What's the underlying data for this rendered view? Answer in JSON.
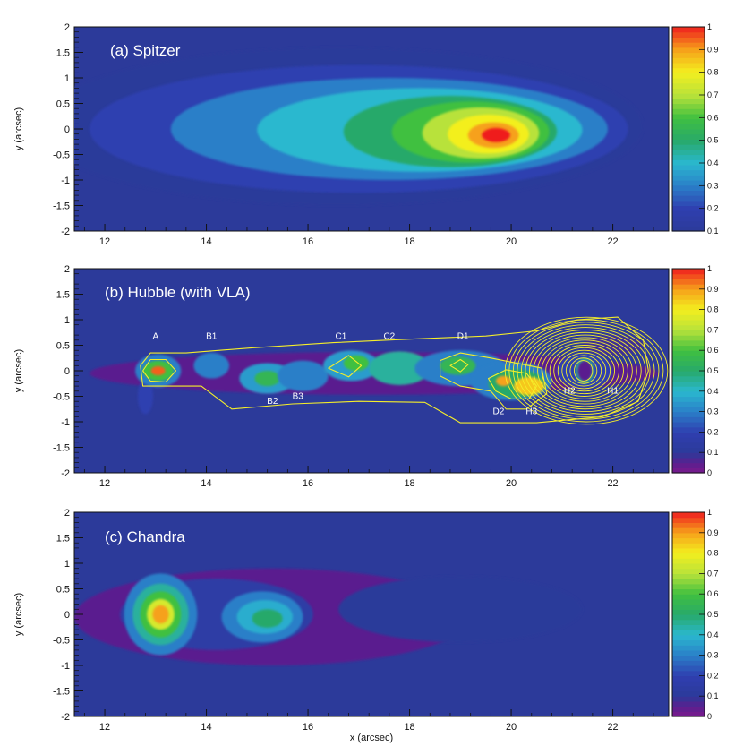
{
  "chart_data": [
    {
      "type": "heatmap",
      "title": "(a) Spitzer",
      "xlabel": "",
      "ylabel": "y (arcsec)",
      "xlim": [
        11.4,
        23.1
      ],
      "ylim": [
        -2,
        2
      ],
      "x_ticks": [
        "12",
        "14",
        "16",
        "18",
        "20",
        "22"
      ],
      "y_ticks": [
        "2",
        "1.5",
        "1",
        "0.5",
        "0",
        "-0.5",
        "-1",
        "-1.5",
        "-2"
      ],
      "colorbar": {
        "range": [
          0.1,
          1
        ],
        "labels": [
          "1",
          "0.9",
          "0.8",
          "0.7",
          "0.6",
          "0.5",
          "0.4",
          "0.3",
          "0.2",
          "0.1"
        ]
      },
      "background": "#2c3a9a",
      "sources": [
        {
          "x": 16.6,
          "y": 0.05,
          "rx": 6.0,
          "ry": 1.55,
          "level": 0.1
        },
        {
          "x": 17.0,
          "y": 0.0,
          "rx": 5.3,
          "ry": 1.25,
          "level": 0.2
        },
        {
          "x": 17.6,
          "y": 0.0,
          "rx": 4.3,
          "ry": 1.0,
          "level": 0.3
        },
        {
          "x": 18.2,
          "y": -0.02,
          "rx": 3.2,
          "ry": 0.82,
          "level": 0.4
        },
        {
          "x": 18.8,
          "y": -0.05,
          "rx": 2.1,
          "ry": 0.7,
          "level": 0.5
        },
        {
          "x": 19.2,
          "y": -0.06,
          "rx": 1.55,
          "ry": 0.6,
          "level": 0.6
        },
        {
          "x": 19.4,
          "y": -0.08,
          "rx": 1.15,
          "ry": 0.5,
          "level": 0.7
        },
        {
          "x": 19.55,
          "y": -0.1,
          "rx": 0.8,
          "ry": 0.38,
          "level": 0.8
        },
        {
          "x": 19.65,
          "y": -0.12,
          "rx": 0.5,
          "ry": 0.25,
          "level": 0.9
        },
        {
          "x": 19.7,
          "y": -0.12,
          "rx": 0.28,
          "ry": 0.14,
          "level": 1.0
        }
      ],
      "contours": [],
      "annotations": []
    },
    {
      "type": "heatmap",
      "title": "(b) Hubble (with VLA)",
      "xlabel": "",
      "ylabel": "y (arcsec)",
      "xlim": [
        11.4,
        23.1
      ],
      "ylim": [
        -2,
        2
      ],
      "x_ticks": [
        "12",
        "14",
        "16",
        "18",
        "20",
        "22"
      ],
      "y_ticks": [
        "2",
        "1.5",
        "1",
        "0.5",
        "0",
        "-0.5",
        "-1",
        "-1.5",
        "-2"
      ],
      "colorbar": {
        "range": [
          0,
          1
        ],
        "labels": [
          "1",
          "0.9",
          "0.8",
          "0.7",
          "0.6",
          "0.5",
          "0.4",
          "0.3",
          "0.2",
          "0.1",
          "0"
        ]
      },
      "background": "#2c3a9a",
      "sources": [
        {
          "x": 17.3,
          "y": -0.05,
          "rx": 5.6,
          "ry": 0.42,
          "level": 0.05
        },
        {
          "x": 12.8,
          "y": -0.5,
          "rx": 0.15,
          "ry": 0.35,
          "level": 0.2
        },
        {
          "x": 13.05,
          "y": 0.0,
          "rx": 0.45,
          "ry": 0.32,
          "level": 0.3
        },
        {
          "x": 13.05,
          "y": 0.0,
          "rx": 0.3,
          "ry": 0.2,
          "level": 0.6
        },
        {
          "x": 13.05,
          "y": 0.0,
          "rx": 0.14,
          "ry": 0.09,
          "level": 0.95
        },
        {
          "x": 14.1,
          "y": 0.1,
          "rx": 0.35,
          "ry": 0.25,
          "level": 0.3
        },
        {
          "x": 15.2,
          "y": -0.15,
          "rx": 0.55,
          "ry": 0.3,
          "level": 0.35
        },
        {
          "x": 15.2,
          "y": -0.15,
          "rx": 0.25,
          "ry": 0.15,
          "level": 0.55
        },
        {
          "x": 15.9,
          "y": -0.1,
          "rx": 0.5,
          "ry": 0.3,
          "level": 0.3
        },
        {
          "x": 16.85,
          "y": 0.1,
          "rx": 0.55,
          "ry": 0.3,
          "level": 0.35
        },
        {
          "x": 16.95,
          "y": 0.15,
          "rx": 0.25,
          "ry": 0.15,
          "level": 0.6
        },
        {
          "x": 17.8,
          "y": 0.05,
          "rx": 0.6,
          "ry": 0.33,
          "level": 0.45
        },
        {
          "x": 19.0,
          "y": 0.05,
          "rx": 0.9,
          "ry": 0.35,
          "level": 0.3
        },
        {
          "x": 18.95,
          "y": 0.1,
          "rx": 0.35,
          "ry": 0.18,
          "level": 0.55
        },
        {
          "x": 20.0,
          "y": -0.2,
          "rx": 0.8,
          "ry": 0.38,
          "level": 0.3
        },
        {
          "x": 20.1,
          "y": -0.25,
          "rx": 0.55,
          "ry": 0.28,
          "level": 0.5
        },
        {
          "x": 20.35,
          "y": -0.3,
          "rx": 0.3,
          "ry": 0.18,
          "level": 0.85
        },
        {
          "x": 19.85,
          "y": -0.2,
          "rx": 0.15,
          "ry": 0.1,
          "level": 0.9
        },
        {
          "x": 21.45,
          "y": 0.0,
          "rx": 0.55,
          "ry": 0.35,
          "level": 0.2
        },
        {
          "x": 21.45,
          "y": 0.0,
          "rx": 0.18,
          "ry": 0.25,
          "level": 0.45
        },
        {
          "x": 21.45,
          "y": 0.0,
          "rx": 0.14,
          "ry": 0.2,
          "level": 0.05
        },
        {
          "x": 22.0,
          "y": 0.5,
          "rx": 0.6,
          "ry": 0.2,
          "level": 0.08
        }
      ],
      "contours": [
        {
          "points": [
            [
              12.7,
              0.1
            ],
            [
              12.9,
              0.35
            ],
            [
              13.6,
              0.35
            ],
            [
              14.9,
              0.45
            ],
            [
              16.5,
              0.55
            ],
            [
              18.0,
              0.62
            ],
            [
              19.5,
              0.68
            ],
            [
              20.5,
              0.78
            ],
            [
              21.3,
              1.0
            ],
            [
              22.1,
              1.05
            ],
            [
              22.6,
              0.6
            ],
            [
              22.7,
              0.0
            ],
            [
              22.5,
              -0.6
            ],
            [
              21.8,
              -0.9
            ],
            [
              20.5,
              -1.02
            ],
            [
              19.0,
              -1.02
            ],
            [
              18.3,
              -0.62
            ],
            [
              17.0,
              -0.6
            ],
            [
              15.7,
              -0.65
            ],
            [
              14.5,
              -0.75
            ],
            [
              13.9,
              -0.3
            ],
            [
              13.3,
              -0.3
            ],
            [
              12.75,
              -0.3
            ]
          ],
          "closed": true
        },
        {
          "points": [
            [
              12.75,
              0.0
            ],
            [
              12.9,
              0.22
            ],
            [
              13.2,
              0.22
            ],
            [
              13.4,
              0.0
            ],
            [
              13.2,
              -0.22
            ],
            [
              12.9,
              -0.2
            ]
          ],
          "closed": true
        },
        {
          "points": [
            [
              18.6,
              0.2
            ],
            [
              19.0,
              0.35
            ],
            [
              19.6,
              0.25
            ],
            [
              20.1,
              0.15
            ],
            [
              20.6,
              0.05
            ],
            [
              20.7,
              -0.45
            ],
            [
              20.3,
              -0.75
            ],
            [
              19.9,
              -0.75
            ],
            [
              19.6,
              -0.4
            ],
            [
              19.0,
              -0.3
            ],
            [
              18.6,
              -0.1
            ]
          ],
          "closed": true
        },
        {
          "points": [
            [
              19.55,
              -0.15
            ],
            [
              19.9,
              0.02
            ],
            [
              20.3,
              -0.05
            ],
            [
              20.5,
              -0.3
            ],
            [
              20.35,
              -0.55
            ],
            [
              20.0,
              -0.55
            ],
            [
              19.7,
              -0.4
            ]
          ],
          "closed": true
        },
        {
          "points": [
            [
              16.4,
              0.05
            ],
            [
              16.8,
              0.3
            ],
            [
              17.05,
              0.1
            ],
            [
              16.8,
              -0.12
            ]
          ],
          "closed": true
        },
        {
          "points": [
            [
              18.8,
              0.1
            ],
            [
              19.0,
              0.22
            ],
            [
              19.15,
              0.12
            ],
            [
              19.0,
              -0.02
            ]
          ],
          "closed": true
        }
      ],
      "vla_rings": {
        "x": 21.42,
        "y": 0.0,
        "count": 18,
        "rx_min": 0.18,
        "rx_max": 1.6,
        "ry_min": 0.2,
        "ry_max": 1.05,
        "shift": 0.06
      },
      "annotations": [
        {
          "text": "A",
          "x": 13.0,
          "y": 0.62
        },
        {
          "text": "B1",
          "x": 14.1,
          "y": 0.62
        },
        {
          "text": "B2",
          "x": 15.3,
          "y": -0.65
        },
        {
          "text": "B3",
          "x": 15.8,
          "y": -0.55
        },
        {
          "text": "C1",
          "x": 16.65,
          "y": 0.62
        },
        {
          "text": "C2",
          "x": 17.6,
          "y": 0.62
        },
        {
          "text": "D1",
          "x": 19.05,
          "y": 0.62
        },
        {
          "text": "D2",
          "x": 19.75,
          "y": -0.85
        },
        {
          "text": "H3",
          "x": 20.4,
          "y": -0.85
        },
        {
          "text": "H2",
          "x": 21.15,
          "y": -0.45
        },
        {
          "text": "H1",
          "x": 22.0,
          "y": -0.45
        }
      ]
    },
    {
      "type": "heatmap",
      "title": "(c) Chandra",
      "xlabel": "x (arcsec)",
      "ylabel": "y (arcsec)",
      "xlim": [
        11.4,
        23.1
      ],
      "ylim": [
        -2,
        2
      ],
      "x_ticks": [
        "12",
        "14",
        "16",
        "18",
        "20",
        "22"
      ],
      "y_ticks": [
        "2",
        "1.5",
        "1",
        "0.5",
        "0",
        "-0.5",
        "-1",
        "-1.5",
        "-2"
      ],
      "colorbar": {
        "range": [
          0,
          1
        ],
        "labels": [
          "1",
          "0.9",
          "0.8",
          "0.7",
          "0.6",
          "0.5",
          "0.4",
          "0.3",
          "0.2",
          "0.1",
          "0"
        ]
      },
      "background": "#2c3a9a",
      "sources": [
        {
          "x": 15.3,
          "y": -0.05,
          "rx": 3.9,
          "ry": 0.95,
          "level": 0.05
        },
        {
          "x": 19.0,
          "y": 0.1,
          "rx": 2.4,
          "ry": 0.65,
          "level": 0.1
        },
        {
          "x": 14.2,
          "y": 0.0,
          "rx": 1.9,
          "ry": 0.7,
          "level": 0.15
        },
        {
          "x": 13.1,
          "y": 0.0,
          "rx": 0.72,
          "ry": 0.8,
          "level": 0.3
        },
        {
          "x": 13.1,
          "y": 0.0,
          "rx": 0.55,
          "ry": 0.6,
          "level": 0.45
        },
        {
          "x": 13.1,
          "y": 0.0,
          "rx": 0.4,
          "ry": 0.45,
          "level": 0.6
        },
        {
          "x": 13.1,
          "y": 0.0,
          "rx": 0.27,
          "ry": 0.3,
          "level": 0.75
        },
        {
          "x": 13.1,
          "y": 0.0,
          "rx": 0.16,
          "ry": 0.18,
          "level": 0.9
        },
        {
          "x": 15.1,
          "y": -0.05,
          "rx": 0.8,
          "ry": 0.5,
          "level": 0.3
        },
        {
          "x": 15.15,
          "y": -0.05,
          "rx": 0.55,
          "ry": 0.33,
          "level": 0.38
        },
        {
          "x": 15.2,
          "y": -0.08,
          "rx": 0.3,
          "ry": 0.18,
          "level": 0.5
        }
      ],
      "contours": [],
      "annotations": []
    }
  ]
}
